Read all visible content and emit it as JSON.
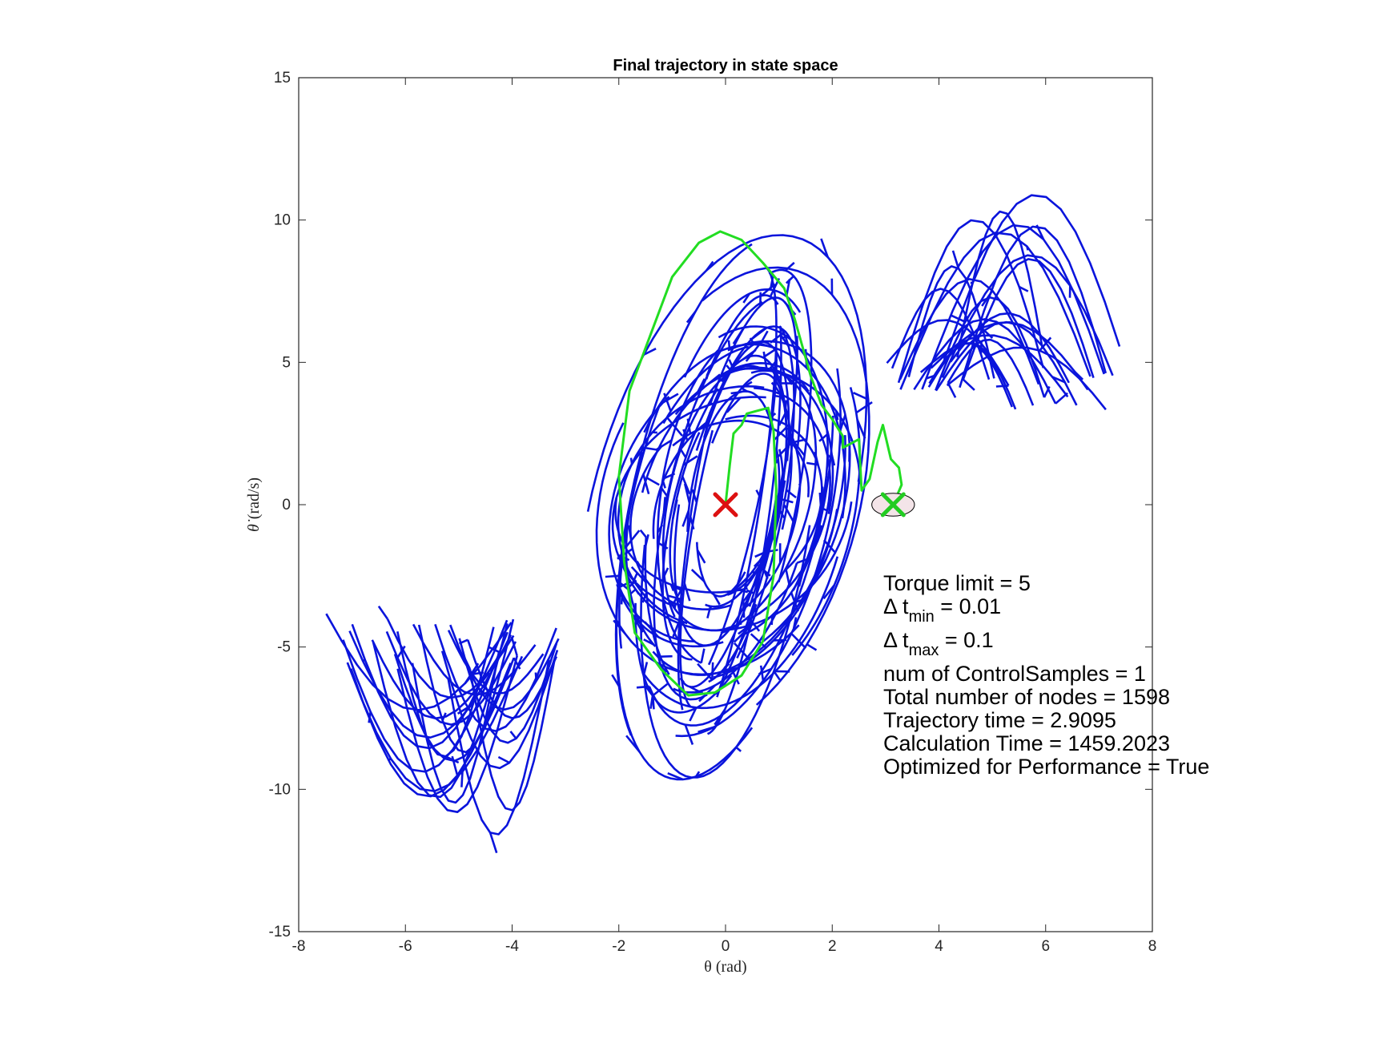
{
  "chart_data": {
    "type": "line",
    "title": "Final trajectory in state space",
    "xlabel": "θ (rad)",
    "ylabel_symbol": "θ̇",
    "ylabel_unit": "(rad/s)",
    "xlim": [
      -8,
      8
    ],
    "ylim": [
      -15,
      15
    ],
    "xticks": [
      -8,
      -6,
      -4,
      -2,
      0,
      2,
      4,
      6,
      8
    ],
    "yticks": [
      -15,
      -10,
      -5,
      0,
      5,
      10,
      15
    ],
    "grid": false,
    "colors": {
      "tree": "#0a14dc",
      "path": "#22dd22",
      "start": "#dd1111",
      "goal": "#22cc22",
      "goal_region_fill": "#f3e4e8"
    },
    "start": {
      "x": 0,
      "y": 0
    },
    "goal": {
      "x": 3.1416,
      "y": 0,
      "rx": 0.4,
      "ry": 0.4
    },
    "series": [
      {
        "values": [
          [
            0,
            0
          ],
          [
            0.08,
            1.4
          ],
          [
            0.15,
            2.5
          ],
          [
            0.3,
            2.8
          ],
          [
            0.4,
            3.2
          ],
          [
            0.6,
            3.3
          ],
          [
            0.8,
            3.4
          ],
          [
            0.9,
            2.6
          ],
          [
            0.95,
            0.5
          ],
          [
            0.9,
            -2.5
          ],
          [
            0.7,
            -4.8
          ],
          [
            0.3,
            -6
          ],
          [
            -0.2,
            -6.6
          ],
          [
            -0.7,
            -6.7
          ],
          [
            -1.2,
            -5.8
          ],
          [
            -1.7,
            -4.5
          ],
          [
            -1.9,
            -2
          ],
          [
            -2.0,
            1
          ],
          [
            -1.8,
            4
          ],
          [
            -1.4,
            6
          ],
          [
            -1.0,
            8
          ],
          [
            -0.5,
            9.2
          ],
          [
            -0.1,
            9.6
          ],
          [
            0.3,
            9.3
          ],
          [
            0.7,
            8.5
          ],
          [
            1.1,
            7.6
          ],
          [
            1.3,
            6.5
          ],
          [
            1.6,
            4.5
          ],
          [
            1.8,
            3.5
          ],
          [
            2.0,
            3
          ],
          [
            2.2,
            2.4
          ],
          [
            2.2,
            2
          ],
          [
            2.5,
            2.3
          ],
          [
            2.55,
            0.5
          ],
          [
            2.7,
            0.9
          ],
          [
            2.85,
            2.2
          ],
          [
            2.95,
            2.8
          ],
          [
            3.1,
            1.6
          ],
          [
            3.25,
            1.3
          ],
          [
            3.3,
            0.7
          ],
          [
            3.1416,
            0
          ]
        ]
      }
    ],
    "tree_note": "dense RRT exploration tree (~1598 nodes) in blue"
  },
  "annotations": {
    "torque": "Torque limit = 5",
    "dtmin_prefix": "Δ t",
    "dtmin_sub": "min",
    "dtmin_value": " = 0.01",
    "dtmax_prefix": "Δ t",
    "dtmax_sub": "max",
    "dtmax_value": " = 0.1",
    "samples": "num of ControlSamples = 1",
    "nodes": "Total number of nodes = 1598",
    "traj_time": "Trajectory time = 2.9095",
    "calc_time": "Calculation Time = 1459.2023",
    "optimized": "Optimized for Performance = True"
  }
}
